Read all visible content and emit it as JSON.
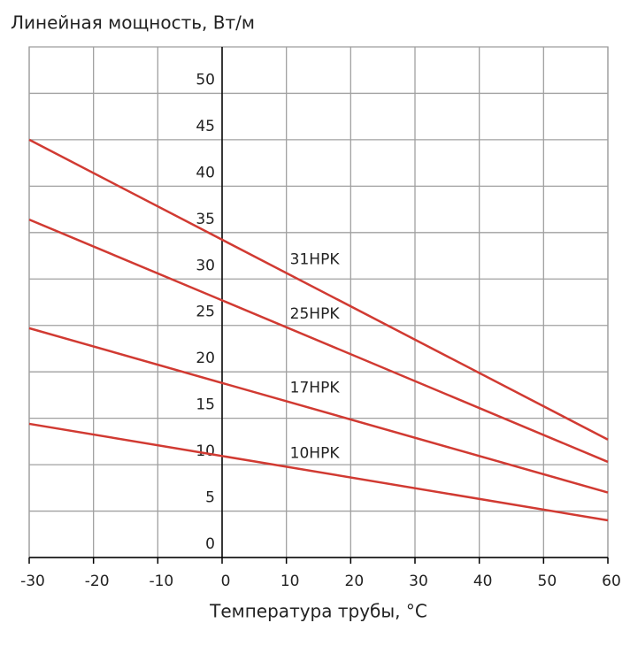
{
  "chart_data": {
    "type": "line",
    "ylabel": "Линейная мощность, Вт/м",
    "xlabel": "Температура трубы, °C",
    "x": [
      -30,
      60
    ],
    "series": [
      {
        "name": "31HPK",
        "color": "#d13a32",
        "values": [
          45.0,
          12.7
        ]
      },
      {
        "name": "25HPK",
        "color": "#d13a32",
        "values": [
          36.4,
          10.3
        ]
      },
      {
        "name": "17HPK",
        "color": "#d13a32",
        "values": [
          24.7,
          7.0
        ]
      },
      {
        "name": "10HPK",
        "color": "#d13a32",
        "values": [
          14.4,
          4.0
        ]
      }
    ],
    "xlim": [
      -30,
      60
    ],
    "xticks": [
      -30,
      -20,
      -10,
      0,
      10,
      20,
      30,
      40,
      50,
      60
    ],
    "ylim": [
      0,
      55
    ],
    "yticks": [
      0,
      5,
      10,
      15,
      20,
      25,
      30,
      35,
      40,
      45,
      50
    ],
    "label_x": 10,
    "grid": true
  }
}
